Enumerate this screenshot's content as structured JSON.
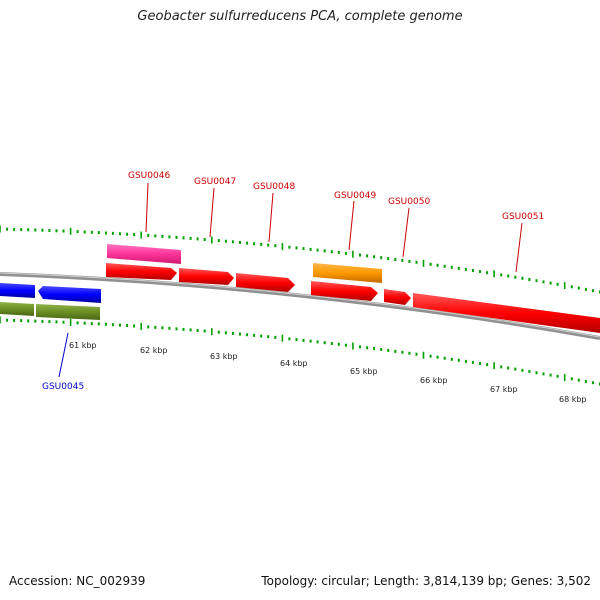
{
  "title": "Geobacter sulfurreducens PCA, complete genome",
  "footer": {
    "accession": "Accession: NC_002939",
    "summary": "Topology: circular; Length: 3,814,139 bp; Genes: 3,502"
  },
  "colors": {
    "forward_cds": "#ff0000",
    "reverse_cds": "#0000ff",
    "pink_feature": "#ff3399",
    "orange_feature": "#ff9900",
    "olive_feature": "#6b8e23",
    "tick": "#00a000",
    "backbone": "#909090"
  },
  "kbp_labels": [
    "61 kbp",
    "62 kbp",
    "63 kbp",
    "64 kbp",
    "65 kbp",
    "66 kbp",
    "67 kbp",
    "68 kbp"
  ],
  "gene_labels": [
    {
      "name": "GSU0045",
      "color": "#0000cc"
    },
    {
      "name": "GSU0046",
      "color": "#cc0000"
    },
    {
      "name": "GSU0047",
      "color": "#cc0000"
    },
    {
      "name": "GSU0048",
      "color": "#cc0000"
    },
    {
      "name": "GSU0049",
      "color": "#cc0000"
    },
    {
      "name": "GSU0050",
      "color": "#cc0000"
    },
    {
      "name": "GSU0051",
      "color": "#cc0000"
    }
  ]
}
